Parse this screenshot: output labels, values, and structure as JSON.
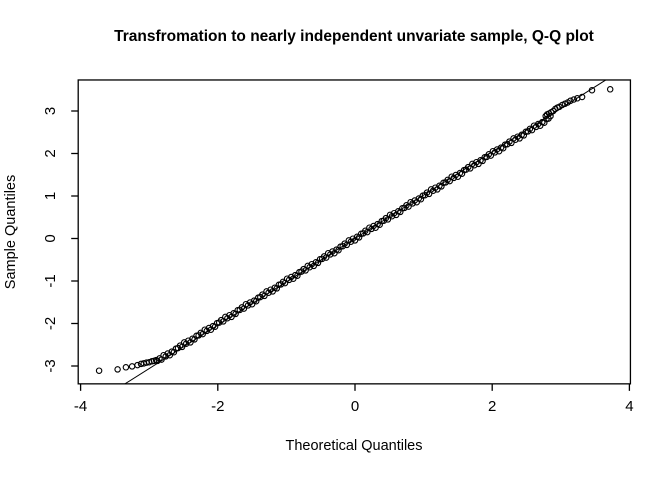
{
  "chart_data": {
    "type": "scatter",
    "title": "Transfromation to nearly independent unvariate sample, Q-Q plot",
    "xlabel": "Theoretical Quantiles",
    "ylabel": "Sample Quantiles",
    "x_ticks": [
      -4,
      -2,
      0,
      2,
      4
    ],
    "y_ticks": [
      -3,
      -2,
      -1,
      0,
      1,
      2,
      3
    ],
    "xlim": [
      -4.035,
      4.015
    ],
    "ylim": [
      -3.42,
      3.73
    ],
    "grid": false,
    "legend": "none",
    "marker": "open-circle",
    "colors": {
      "points": "#000000",
      "reference_line": "#000000",
      "frame": "#000000",
      "background": "#ffffff"
    },
    "reference_line": {
      "slope": 1.02,
      "intercept": 0
    },
    "points_left_tail": [
      [
        -3.73,
        -3.11
      ],
      [
        -3.46,
        -3.08
      ],
      [
        -3.34,
        -3.03
      ],
      [
        -3.25,
        -3.01
      ],
      [
        -3.17,
        -2.98
      ],
      [
        -3.12,
        -2.95
      ],
      [
        -3.08,
        -2.94
      ],
      [
        -3.04,
        -2.92
      ],
      [
        -3.0,
        -2.91
      ],
      [
        -2.96,
        -2.89
      ],
      [
        -2.93,
        -2.88
      ],
      [
        -2.9,
        -2.86
      ]
    ],
    "points_right_tail": [
      [
        2.78,
        2.88
      ],
      [
        2.8,
        2.92
      ],
      [
        2.83,
        2.94
      ],
      [
        2.86,
        2.97
      ],
      [
        2.89,
        3.0
      ],
      [
        2.92,
        3.05
      ],
      [
        2.95,
        3.08
      ],
      [
        2.98,
        3.1
      ],
      [
        3.02,
        3.14
      ],
      [
        3.06,
        3.17
      ],
      [
        3.1,
        3.2
      ],
      [
        3.14,
        3.24
      ],
      [
        3.19,
        3.27
      ],
      [
        3.24,
        3.3
      ],
      [
        3.31,
        3.33
      ],
      [
        3.455,
        3.49
      ],
      [
        3.72,
        3.51
      ]
    ],
    "dense_band": {
      "x_start": -2.88,
      "x_end": 2.85,
      "step": 0.03,
      "slope": 1.0,
      "intercept": 0.0,
      "jitter_cycle": [
        0.0,
        0.03,
        -0.03,
        0.045,
        -0.015,
        0.025,
        -0.045,
        0.01,
        -0.035,
        0.02
      ]
    }
  }
}
